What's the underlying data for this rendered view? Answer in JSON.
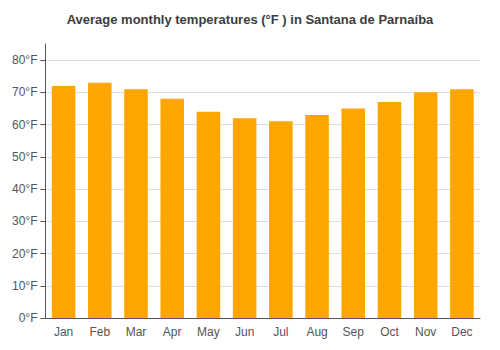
{
  "chart_data": {
    "type": "bar",
    "title": "Average monthly temperatures (°F ) in Santana de Parnaíba",
    "categories": [
      "Jan",
      "Feb",
      "Mar",
      "Apr",
      "May",
      "Jun",
      "Jul",
      "Aug",
      "Sep",
      "Oct",
      "Nov",
      "Dec"
    ],
    "values": [
      72,
      73,
      71,
      68,
      64,
      62,
      61,
      63,
      65,
      67,
      70,
      71
    ],
    "color": "#FFA500",
    "ylim": [
      0,
      85
    ],
    "yticks": [
      {
        "value": 0,
        "label": "0°F"
      },
      {
        "value": 10,
        "label": "10°F"
      },
      {
        "value": 20,
        "label": "20°F"
      },
      {
        "value": 30,
        "label": "30°F"
      },
      {
        "value": 40,
        "label": "40°F"
      },
      {
        "value": 50,
        "label": "50°F"
      },
      {
        "value": 60,
        "label": "60°F"
      },
      {
        "value": 70,
        "label": "70°F"
      },
      {
        "value": 80,
        "label": "80°F"
      }
    ],
    "grid": true
  }
}
